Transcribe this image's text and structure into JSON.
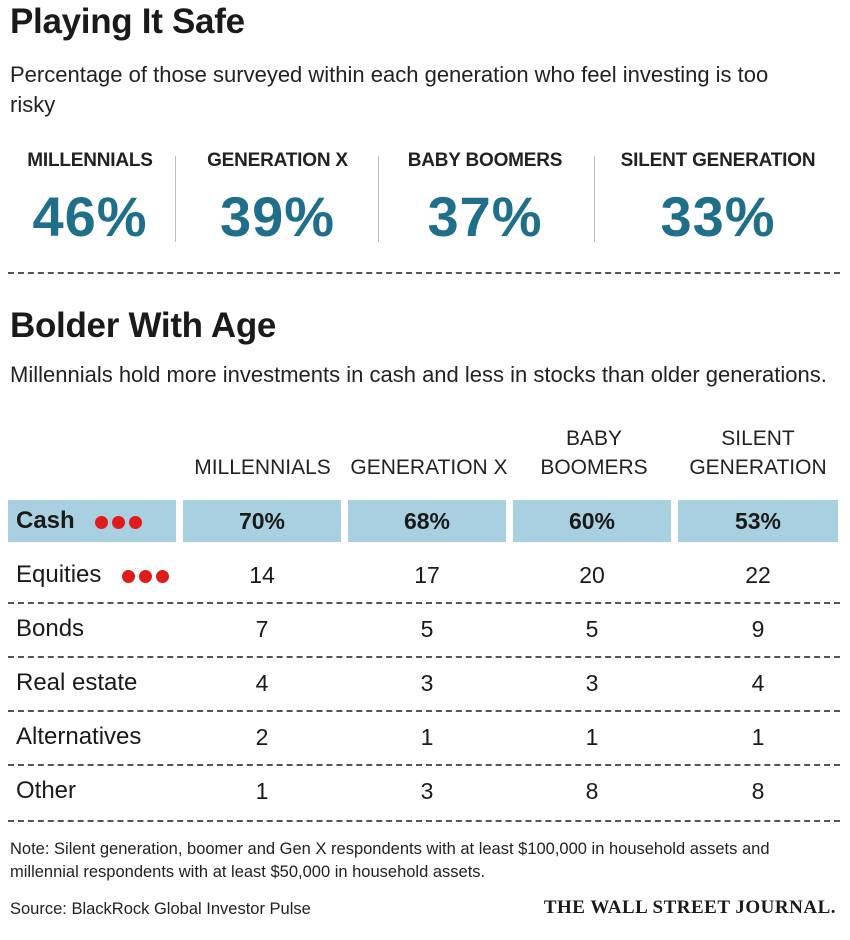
{
  "section1": {
    "title": "Playing It Safe",
    "subtitle": "Percentage of those surveyed within each generation who feel investing is too risky",
    "generations": [
      {
        "label": "MILLENNIALS",
        "value": "46%"
      },
      {
        "label": "GENERATION X",
        "value": "39%"
      },
      {
        "label": "BABY BOOMERS",
        "value": "37%"
      },
      {
        "label": "SILENT GENERATION",
        "value": "33%"
      }
    ]
  },
  "section2": {
    "title": "Bolder With Age",
    "subtitle": "Millennials hold more investments in cash and less in stocks than older generations.",
    "column_headers": [
      {
        "line1": "",
        "line2": "MILLENNIALS"
      },
      {
        "line1": "",
        "line2": "GENERATION X"
      },
      {
        "line1": "BABY",
        "line2": "BOOMERS"
      },
      {
        "line1": "SILENT",
        "line2": "GENERATION"
      }
    ],
    "rows": [
      {
        "label": "Cash",
        "values": [
          "70%",
          "68%",
          "60%",
          "53%"
        ],
        "highlight": true,
        "marker": "red-dots-icon"
      },
      {
        "label": "Equities",
        "values": [
          "14",
          "17",
          "20",
          "22"
        ],
        "highlight": false,
        "marker": "red-dots-icon"
      },
      {
        "label": "Bonds",
        "values": [
          "7",
          "5",
          "5",
          "9"
        ],
        "highlight": false
      },
      {
        "label": "Real estate",
        "values": [
          "4",
          "3",
          "3",
          "4"
        ],
        "highlight": false
      },
      {
        "label": "Alternatives",
        "values": [
          "2",
          "1",
          "1",
          "1"
        ],
        "highlight": false
      },
      {
        "label": "Other",
        "values": [
          "1",
          "3",
          "8",
          "8"
        ],
        "highlight": false
      }
    ]
  },
  "footer": {
    "note": "Note: Silent generation, boomer and Gen X respondents with at least $100,000 in household assets and millennial respondents with at least $50,000 in household assets.",
    "source": "Source:  BlackRock Global Investor Pulse",
    "publisher": "THE WALL STREET JOURNAL."
  },
  "colors": {
    "accent": "#1f6f8b",
    "highlight_row": "#a9d0e0",
    "marker": "#e01b1b"
  },
  "chart_data": [
    {
      "type": "table",
      "title": "Playing It Safe",
      "subtitle": "Percentage of those surveyed within each generation who feel investing is too risky",
      "categories": [
        "MILLENNIALS",
        "GENERATION X",
        "BABY BOOMERS",
        "SILENT GENERATION"
      ],
      "values": [
        46,
        39,
        37,
        33
      ]
    },
    {
      "type": "table",
      "title": "Bolder With Age",
      "subtitle": "Millennials hold more investments in cash and less in stocks than older generations.",
      "categories": [
        "MILLENNIALS",
        "GENERATION X",
        "BABY BOOMERS",
        "SILENT GENERATION"
      ],
      "series": [
        {
          "name": "Cash",
          "values": [
            70,
            68,
            60,
            53
          ]
        },
        {
          "name": "Equities",
          "values": [
            14,
            17,
            20,
            22
          ]
        },
        {
          "name": "Bonds",
          "values": [
            7,
            5,
            5,
            9
          ]
        },
        {
          "name": "Real estate",
          "values": [
            4,
            3,
            3,
            4
          ]
        },
        {
          "name": "Alternatives",
          "values": [
            2,
            1,
            1,
            1
          ]
        },
        {
          "name": "Other",
          "values": [
            1,
            3,
            8,
            8
          ]
        }
      ]
    }
  ]
}
